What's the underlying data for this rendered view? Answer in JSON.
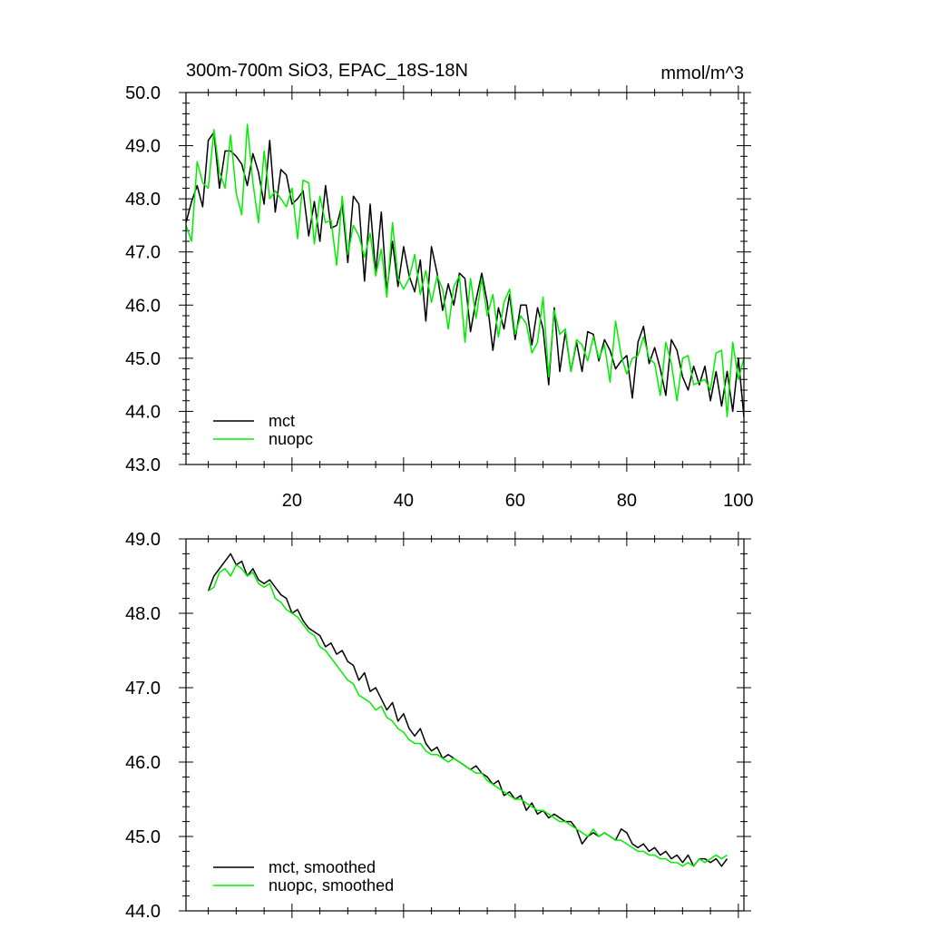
{
  "chart_data": [
    {
      "type": "line",
      "title": "300m-700m SiO3, EPAC_18S-18N",
      "units_label": "mmol/m^3",
      "xlim": [
        1,
        101
      ],
      "ylim": [
        43.0,
        50.0
      ],
      "x_ticks": [
        20,
        40,
        60,
        80,
        100
      ],
      "x_tick_labels": [
        "20",
        "40",
        "60",
        "80",
        "100"
      ],
      "y_ticks": [
        43.0,
        44.0,
        45.0,
        46.0,
        47.0,
        48.0,
        49.0,
        50.0
      ],
      "y_tick_labels": [
        "43.0",
        "44.0",
        "45.0",
        "46.0",
        "47.0",
        "48.0",
        "49.0",
        "50.0"
      ],
      "legend": "bottom-left",
      "series": [
        {
          "name": "mct",
          "color": "#000000",
          "x": [
            1,
            2,
            3,
            4,
            5,
            6,
            7,
            8,
            9,
            10,
            11,
            12,
            13,
            14,
            15,
            16,
            17,
            18,
            19,
            20,
            21,
            22,
            23,
            24,
            25,
            26,
            27,
            28,
            29,
            30,
            31,
            32,
            33,
            34,
            35,
            36,
            37,
            38,
            39,
            40,
            41,
            42,
            43,
            44,
            45,
            46,
            47,
            48,
            49,
            50,
            51,
            52,
            53,
            54,
            55,
            56,
            57,
            58,
            59,
            60,
            61,
            62,
            63,
            64,
            65,
            66,
            67,
            68,
            69,
            70,
            71,
            72,
            73,
            74,
            75,
            76,
            77,
            78,
            79,
            80,
            81,
            82,
            83,
            84,
            85,
            86,
            87,
            88,
            89,
            90,
            91,
            92,
            93,
            94,
            95,
            96,
            97,
            98,
            99,
            100,
            101
          ],
          "values": [
            47.55,
            47.95,
            48.25,
            47.85,
            49.1,
            49.25,
            48.2,
            48.9,
            48.9,
            48.8,
            48.65,
            48.25,
            48.85,
            48.5,
            47.9,
            49.1,
            47.75,
            48.55,
            48.45,
            47.9,
            48.0,
            48.15,
            47.3,
            47.95,
            47.2,
            48.25,
            47.45,
            47.5,
            47.9,
            46.8,
            48.05,
            47.9,
            46.45,
            47.9,
            46.6,
            47.75,
            46.25,
            47.2,
            46.35,
            47.1,
            46.55,
            46.25,
            46.85,
            45.7,
            47.1,
            46.6,
            45.9,
            46.4,
            46.0,
            46.6,
            46.5,
            45.5,
            46.1,
            46.6,
            46.05,
            45.15,
            45.95,
            45.55,
            46.2,
            45.35,
            46.0,
            46.0,
            45.25,
            45.95,
            45.55,
            44.5,
            45.95,
            44.75,
            45.5,
            44.75,
            45.3,
            44.75,
            45.5,
            45.45,
            44.95,
            45.35,
            45.15,
            44.8,
            44.95,
            45.05,
            44.25,
            45.3,
            45.6,
            44.9,
            45.2,
            44.8,
            44.3,
            45.35,
            45.15,
            44.65,
            44.4,
            44.85,
            44.5,
            44.85,
            44.2,
            44.75,
            44.1,
            44.75,
            44.0,
            45.0,
            43.9
          ]
        },
        {
          "name": "nuopc",
          "color": "#00ee00",
          "x": [
            1,
            2,
            3,
            4,
            5,
            6,
            7,
            8,
            9,
            10,
            11,
            12,
            13,
            14,
            15,
            16,
            17,
            18,
            19,
            20,
            21,
            22,
            23,
            24,
            25,
            26,
            27,
            28,
            29,
            30,
            31,
            32,
            33,
            34,
            35,
            36,
            37,
            38,
            39,
            40,
            41,
            42,
            43,
            44,
            45,
            46,
            47,
            48,
            49,
            50,
            51,
            52,
            53,
            54,
            55,
            56,
            57,
            58,
            59,
            60,
            61,
            62,
            63,
            64,
            65,
            66,
            67,
            68,
            69,
            70,
            71,
            72,
            73,
            74,
            75,
            76,
            77,
            78,
            79,
            80,
            81,
            82,
            83,
            84,
            85,
            86,
            87,
            88,
            89,
            90,
            91,
            92,
            93,
            94,
            95,
            96,
            97,
            98,
            99,
            100,
            101
          ],
          "values": [
            47.5,
            47.2,
            48.7,
            48.3,
            48.2,
            49.3,
            48.5,
            48.2,
            49.2,
            48.1,
            47.7,
            49.4,
            48.3,
            47.55,
            48.9,
            48.0,
            48.15,
            48.0,
            47.85,
            48.2,
            47.25,
            48.35,
            48.3,
            47.15,
            48.05,
            47.55,
            47.6,
            46.75,
            48.05,
            46.95,
            47.5,
            47.3,
            46.9,
            47.35,
            46.55,
            47.05,
            46.15,
            47.55,
            46.5,
            46.3,
            46.5,
            46.95,
            46.2,
            46.65,
            46.05,
            46.55,
            46.3,
            45.55,
            46.35,
            46.55,
            45.3,
            46.5,
            45.75,
            46.5,
            45.8,
            46.2,
            45.4,
            46.05,
            46.3,
            45.45,
            45.8,
            45.65,
            45.1,
            45.3,
            46.15,
            44.65,
            45.9,
            45.45,
            45.55,
            44.75,
            45.35,
            45.25,
            44.95,
            45.4,
            45.0,
            45.25,
            44.55,
            45.7,
            45.05,
            44.7,
            45.0,
            45.05,
            45.4,
            45.0,
            44.9,
            44.3,
            45.3,
            44.9,
            44.2,
            45.0,
            45.05,
            44.5,
            44.55,
            44.6,
            44.4,
            45.1,
            45.15,
            43.9,
            45.3,
            44.6,
            45.0
          ]
        }
      ]
    },
    {
      "type": "line",
      "xlim": [
        1,
        101
      ],
      "ylim": [
        44.0,
        49.0
      ],
      "x_ticks": [
        20,
        40,
        60,
        80,
        100
      ],
      "y_ticks": [
        44.0,
        45.0,
        46.0,
        47.0,
        48.0,
        49.0
      ],
      "y_tick_labels": [
        "44.0",
        "45.0",
        "46.0",
        "47.0",
        "48.0",
        "49.0"
      ],
      "legend": "bottom-left",
      "series": [
        {
          "name": "mct, smoothed",
          "color": "#000000",
          "x": [
            5,
            6,
            7,
            8,
            9,
            10,
            11,
            12,
            13,
            14,
            15,
            16,
            17,
            18,
            19,
            20,
            21,
            22,
            23,
            24,
            25,
            26,
            27,
            28,
            29,
            30,
            31,
            32,
            33,
            34,
            35,
            36,
            37,
            38,
            39,
            40,
            41,
            42,
            43,
            44,
            45,
            46,
            47,
            48,
            49,
            50,
            51,
            52,
            53,
            54,
            55,
            56,
            57,
            58,
            59,
            60,
            61,
            62,
            63,
            64,
            65,
            66,
            67,
            68,
            69,
            70,
            71,
            72,
            73,
            74,
            75,
            76,
            77,
            78,
            79,
            80,
            81,
            82,
            83,
            84,
            85,
            86,
            87,
            88,
            89,
            90,
            91,
            92,
            93,
            94,
            95,
            96,
            97,
            98
          ],
          "values": [
            48.3,
            48.5,
            48.6,
            48.7,
            48.8,
            48.65,
            48.7,
            48.5,
            48.6,
            48.45,
            48.4,
            48.45,
            48.35,
            48.25,
            48.2,
            48.0,
            48.05,
            47.9,
            47.8,
            47.75,
            47.7,
            47.55,
            47.6,
            47.45,
            47.5,
            47.35,
            47.3,
            47.1,
            47.2,
            46.95,
            47.0,
            46.85,
            46.7,
            46.8,
            46.55,
            46.65,
            46.45,
            46.35,
            46.45,
            46.25,
            46.15,
            46.2,
            46.05,
            46.1,
            46.05,
            46.0,
            45.95,
            45.9,
            45.95,
            45.85,
            45.8,
            45.7,
            45.75,
            45.55,
            45.6,
            45.5,
            45.55,
            45.35,
            45.45,
            45.3,
            45.35,
            45.25,
            45.3,
            45.25,
            45.2,
            45.2,
            45.1,
            44.9,
            45.0,
            45.05,
            45.0,
            45.05,
            45.0,
            44.95,
            45.1,
            45.05,
            44.9,
            44.85,
            44.9,
            44.8,
            44.85,
            44.75,
            44.8,
            44.7,
            44.75,
            44.65,
            44.75,
            44.6,
            44.7,
            44.7,
            44.65,
            44.7,
            44.6,
            44.7
          ]
        },
        {
          "name": "nuopc, smoothed",
          "color": "#00ee00",
          "x": [
            5,
            6,
            7,
            8,
            9,
            10,
            11,
            12,
            13,
            14,
            15,
            16,
            17,
            18,
            19,
            20,
            21,
            22,
            23,
            24,
            25,
            26,
            27,
            28,
            29,
            30,
            31,
            32,
            33,
            34,
            35,
            36,
            37,
            38,
            39,
            40,
            41,
            42,
            43,
            44,
            45,
            46,
            47,
            48,
            49,
            50,
            51,
            52,
            53,
            54,
            55,
            56,
            57,
            58,
            59,
            60,
            61,
            62,
            63,
            64,
            65,
            66,
            67,
            68,
            69,
            70,
            71,
            72,
            73,
            74,
            75,
            76,
            77,
            78,
            79,
            80,
            81,
            82,
            83,
            84,
            85,
            86,
            87,
            88,
            89,
            90,
            91,
            92,
            93,
            94,
            95,
            96,
            97,
            98
          ],
          "values": [
            48.3,
            48.35,
            48.55,
            48.6,
            48.5,
            48.65,
            48.6,
            48.5,
            48.55,
            48.4,
            48.35,
            48.4,
            48.2,
            48.15,
            48.05,
            48.0,
            47.95,
            47.85,
            47.75,
            47.7,
            47.55,
            47.5,
            47.4,
            47.3,
            47.2,
            47.1,
            47.05,
            46.9,
            46.85,
            46.8,
            46.7,
            46.75,
            46.6,
            46.55,
            46.45,
            46.4,
            46.3,
            46.25,
            46.25,
            46.15,
            46.1,
            46.1,
            46.05,
            46.0,
            46.05,
            46.0,
            45.95,
            45.9,
            45.85,
            45.85,
            45.75,
            45.7,
            45.65,
            45.6,
            45.55,
            45.5,
            45.5,
            45.45,
            45.4,
            45.35,
            45.35,
            45.3,
            45.25,
            45.2,
            45.2,
            45.15,
            45.1,
            45.05,
            45.0,
            45.1,
            45.0,
            45.05,
            45.0,
            44.95,
            44.95,
            44.9,
            44.85,
            44.8,
            44.8,
            44.75,
            44.75,
            44.7,
            44.7,
            44.65,
            44.65,
            44.6,
            44.65,
            44.6,
            44.7,
            44.65,
            44.7,
            44.75,
            44.7,
            44.75
          ]
        }
      ]
    }
  ]
}
